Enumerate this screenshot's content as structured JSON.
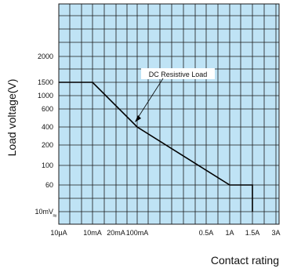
{
  "chart_data": {
    "type": "line",
    "title": "",
    "xlabel": "Contact rating",
    "ylabel": "Load voltage(V)",
    "x_tick_labels": [
      "10μA",
      "10mA",
      "20mA",
      "100mA",
      "0.5A",
      "1A",
      "1.5A",
      "3A"
    ],
    "y_tick_labels": [
      "10mV",
      "60",
      "100",
      "200",
      "400",
      "600",
      "1000",
      "1500",
      "2000"
    ],
    "axis_break_symbol": "≈",
    "series": [
      {
        "name": "DC Resistive Load",
        "x": [
          "10μA",
          "10mA",
          "100mA",
          "1A",
          "1.5A",
          "1.5A"
        ],
        "y": [
          "1500",
          "1500",
          "400",
          "60",
          "60",
          "10mV"
        ]
      }
    ],
    "shaded_region": "under curve",
    "grid": true,
    "annotation": "DC Resistive Load",
    "colors": {
      "background": "#ffffff",
      "shade": "#bfe3f5",
      "grid": "#1a1a1a",
      "curve": "#000000"
    }
  }
}
